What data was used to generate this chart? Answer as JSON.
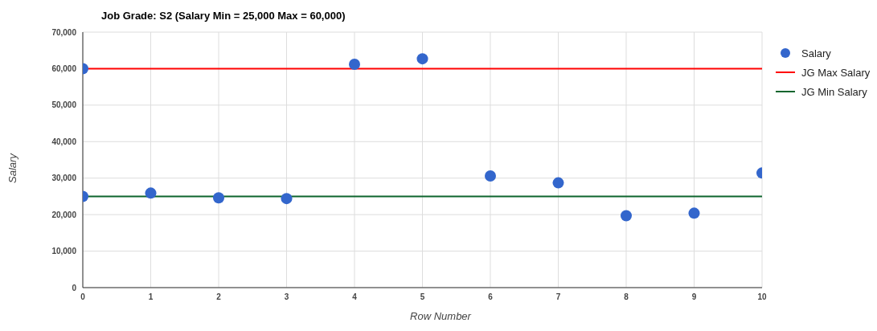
{
  "chart_data": {
    "type": "scatter",
    "title": "Job Grade: S2 (Salary Min = 25,000 Max = 60,000)",
    "xlabel": "Row Number",
    "ylabel": "Salary",
    "xlim": [
      0,
      10
    ],
    "xticks": [
      0,
      1,
      2,
      3,
      4,
      5,
      6,
      7,
      8,
      9,
      10
    ],
    "ylim": [
      0,
      70000
    ],
    "yticks": [
      {
        "value": 0,
        "label": "0"
      },
      {
        "value": 10000,
        "label": "10,000"
      },
      {
        "value": 20000,
        "label": "20,000"
      },
      {
        "value": 30000,
        "label": "30,000"
      },
      {
        "value": 40000,
        "label": "40,000"
      },
      {
        "value": 50000,
        "label": "50,000"
      },
      {
        "value": 60000,
        "label": "60,000"
      },
      {
        "value": 70000,
        "label": "70,000"
      }
    ],
    "grid": true,
    "legend": "top right",
    "series": [
      {
        "name": "Salary",
        "marker": "circle",
        "color": "#3366cc",
        "x": [
          0,
          0,
          1,
          2,
          3,
          4,
          5,
          6,
          7,
          8,
          9,
          10
        ],
        "values": [
          60000,
          25000,
          25900,
          24600,
          24400,
          61200,
          62700,
          30600,
          28700,
          19700,
          20400,
          31400
        ]
      },
      {
        "name": "JG Max Salary",
        "type": "line",
        "marker": "none",
        "color": "#ff0000",
        "x": [
          0,
          10
        ],
        "values": [
          60000,
          60000
        ]
      },
      {
        "name": "JG Min Salary",
        "type": "line",
        "marker": "none",
        "color": "#0d652d",
        "x": [
          0,
          10
        ],
        "values": [
          25000,
          25000
        ]
      }
    ]
  }
}
